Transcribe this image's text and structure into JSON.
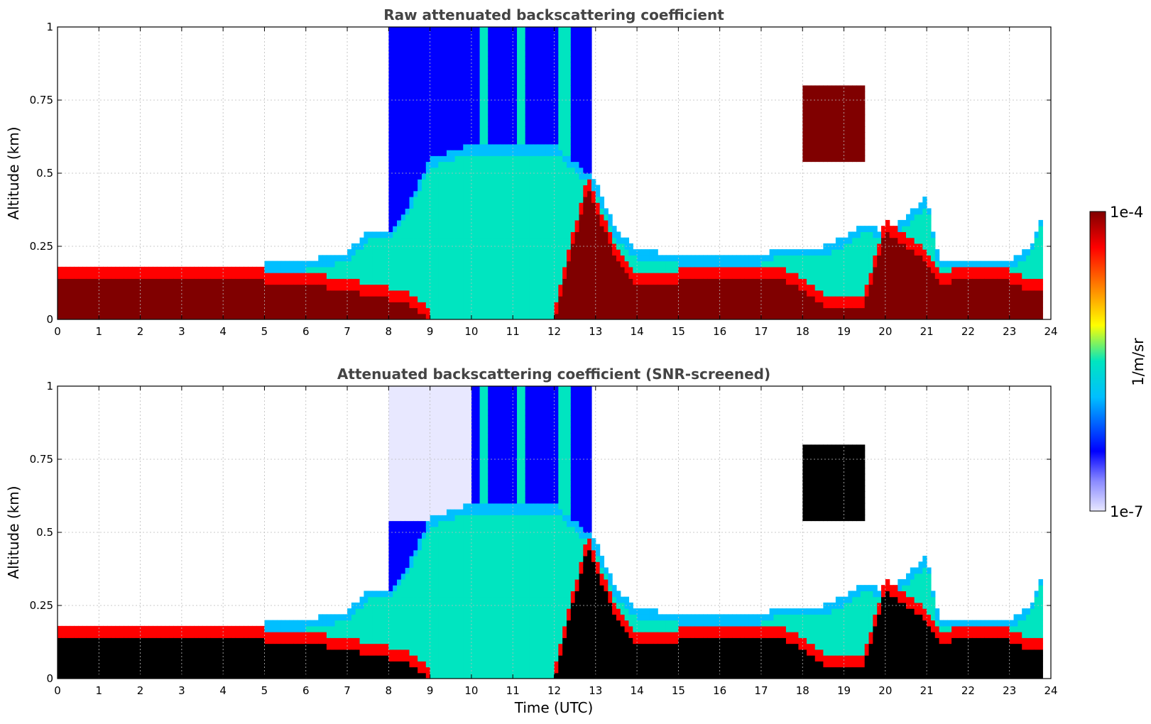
{
  "chart_data": [
    {
      "type": "heatmap",
      "title": "Raw attenuated backscattering coefficient",
      "xlabel": "",
      "ylabel": "Altitude (km)",
      "xlim": [
        0,
        24
      ],
      "ylim": [
        0,
        1
      ],
      "x_ticks": [
        "0",
        "1",
        "2",
        "3",
        "4",
        "5",
        "6",
        "7",
        "8",
        "9",
        "10",
        "11",
        "12",
        "13",
        "14",
        "15",
        "16",
        "17",
        "18",
        "19",
        "20",
        "21",
        "22",
        "23",
        "24"
      ],
      "y_ticks": [
        "0",
        "0.25",
        "0.5",
        "0.75",
        "1"
      ],
      "grid": true,
      "screened": false
    },
    {
      "type": "heatmap",
      "title": "Attenuated backscattering coefficient (SNR-screened)",
      "xlabel": "Time (UTC)",
      "ylabel": "Altitude (km)",
      "xlim": [
        0,
        24
      ],
      "ylim": [
        0,
        1
      ],
      "x_ticks": [
        "0",
        "1",
        "2",
        "3",
        "4",
        "5",
        "6",
        "7",
        "8",
        "9",
        "10",
        "11",
        "12",
        "13",
        "14",
        "15",
        "16",
        "17",
        "18",
        "19",
        "20",
        "21",
        "22",
        "23",
        "24"
      ],
      "y_ticks": [
        "0",
        "0.25",
        "0.5",
        "0.75",
        "1"
      ],
      "grid": true,
      "screened": true
    }
  ],
  "colorbar": {
    "label": "1/m/sr",
    "max_label": "1e-4",
    "min_label": "1e-7",
    "scale": "log",
    "colormap": [
      "#e8e8ff",
      "#0000ff",
      "#00bfff",
      "#00e5c0",
      "#ffff00",
      "#ff8000",
      "#ff0000",
      "#800000"
    ]
  },
  "layer_profile": {
    "x": [
      0,
      1,
      2,
      3,
      4,
      5,
      6,
      7,
      7.5,
      8,
      8.5,
      9,
      10,
      11,
      12,
      12.8,
      13,
      13.5,
      14,
      15,
      16,
      17,
      17.5,
      18,
      18.5,
      19,
      19.5,
      20,
      20.5,
      21,
      21.3,
      22,
      23,
      23.5,
      23.8
    ],
    "aerosol_top_km": [
      0.19,
      0.18,
      0.19,
      0.18,
      0.19,
      0.19,
      0.2,
      0.23,
      0.3,
      0.3,
      0.4,
      0.55,
      0.6,
      0.6,
      0.6,
      0.5,
      0.47,
      0.3,
      0.24,
      0.22,
      0.21,
      0.22,
      0.25,
      0.24,
      0.25,
      0.28,
      0.33,
      0.3,
      0.35,
      0.42,
      0.2,
      0.21,
      0.2,
      0.25,
      0.36
    ],
    "dense_top_km": [
      0.15,
      0.14,
      0.15,
      0.13,
      0.14,
      0.13,
      0.12,
      0.1,
      0.08,
      0.07,
      0.05,
      0.0,
      0.0,
      0.0,
      0.0,
      0.45,
      0.38,
      0.2,
      0.12,
      0.13,
      0.14,
      0.13,
      0.14,
      0.1,
      0.05,
      0.05,
      0.05,
      0.3,
      0.25,
      0.2,
      0.12,
      0.14,
      0.13,
      0.1,
      0.1
    ]
  }
}
